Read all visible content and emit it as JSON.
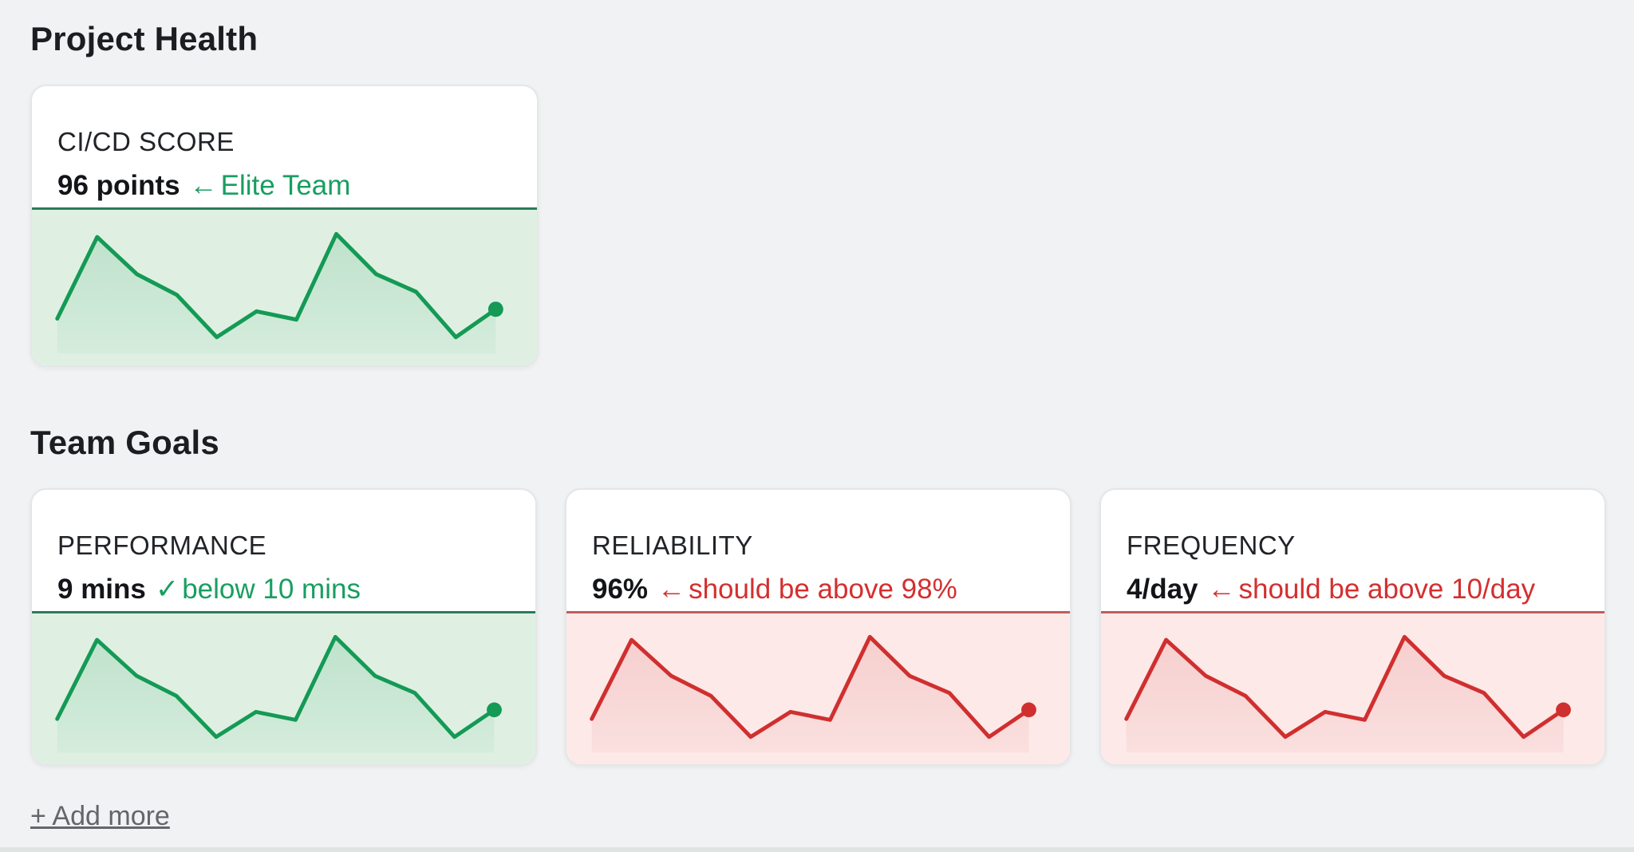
{
  "page": {
    "background": "#f0f2f3"
  },
  "sections": [
    {
      "id": "project-health",
      "heading": "Project Health",
      "cards": [
        {
          "id": "ci-cd-score",
          "title": "CI/CD SCORE",
          "value": "96 points",
          "status_icon": "←",
          "status_text": "Elite Team",
          "state": "good"
        }
      ]
    },
    {
      "id": "team-goals",
      "heading": "Team Goals",
      "cards": [
        {
          "id": "performance",
          "title": "PERFORMANCE",
          "value": "9 mins",
          "status_icon": "✓",
          "status_text": "below 10 mins",
          "state": "good"
        },
        {
          "id": "reliability",
          "title": "RELIABILITY",
          "value": "96%",
          "status_icon": "←",
          "status_text": "should be above 98%",
          "state": "bad"
        },
        {
          "id": "frequency",
          "title": "FREQUENCY",
          "value": "4/day",
          "status_icon": "←",
          "status_text": "should be above 10/day",
          "state": "bad"
        }
      ]
    }
  ],
  "add_more": {
    "label": "+ Add more"
  },
  "themes": {
    "good": {
      "accent_text": "#189e61",
      "line": "#149a55",
      "chart_bg": "#dff0e3",
      "divider": "#2b7c5b",
      "fill_top_opacity": 0.16,
      "fill_bottom_opacity": 0.05
    },
    "bad": {
      "accent_text": "#d42f2f",
      "line": "#d02f2f",
      "chart_bg": "#fce9e8",
      "divider": "#c25c5c",
      "fill_top_opacity": 0.14,
      "fill_bottom_opacity": 0.05
    }
  },
  "chart_data": {
    "type": "line",
    "x": [
      1,
      2,
      3,
      4,
      5,
      6,
      7,
      8,
      9,
      10,
      11,
      12
    ],
    "ylim": [
      0,
      100
    ],
    "axes": "none (sparkline, no ticks or labels)",
    "legend": "none",
    "marker": "filled dot on final point of each series",
    "note": "values are relative heights (0-100) estimated from pixels; all four sparklines share the same shape",
    "series": [
      {
        "name": "CI/CD SCORE",
        "card": "ci-cd-score",
        "color": "#149a55",
        "values": [
          18,
          97,
          61,
          41,
          0,
          25,
          17,
          100,
          61,
          44,
          0,
          27
        ]
      },
      {
        "name": "PERFORMANCE",
        "card": "performance",
        "color": "#149a55",
        "values": [
          18,
          97,
          61,
          41,
          0,
          25,
          17,
          100,
          61,
          44,
          0,
          27
        ]
      },
      {
        "name": "RELIABILITY",
        "card": "reliability",
        "color": "#d02f2f",
        "values": [
          18,
          97,
          61,
          41,
          0,
          25,
          17,
          100,
          61,
          44,
          0,
          27
        ]
      },
      {
        "name": "FREQUENCY",
        "card": "frequency",
        "color": "#d02f2f",
        "values": [
          18,
          97,
          61,
          41,
          0,
          25,
          17,
          100,
          61,
          44,
          0,
          27
        ]
      }
    ]
  }
}
